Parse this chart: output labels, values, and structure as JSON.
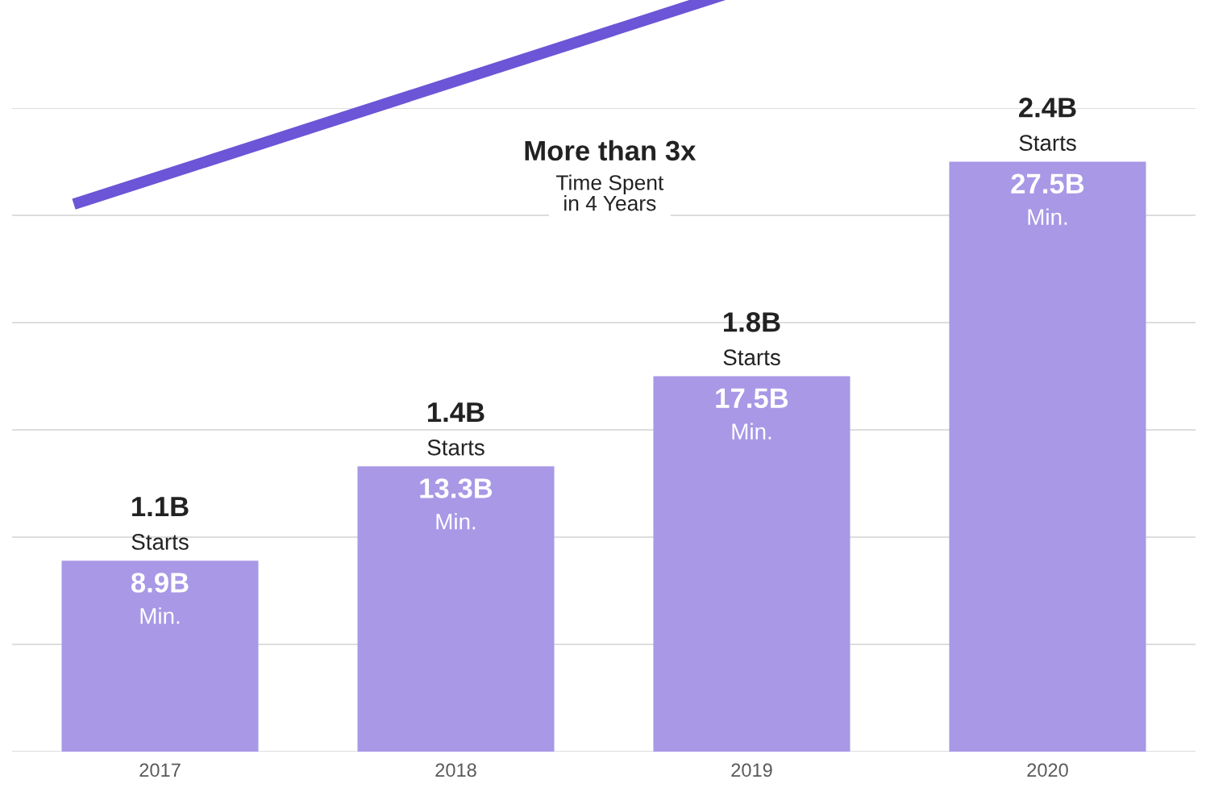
{
  "chart_data": {
    "type": "bar",
    "categories": [
      "2017",
      "2018",
      "2019",
      "2020"
    ],
    "values": [
      8.9,
      13.3,
      17.5,
      27.5
    ],
    "color": "#a898e6",
    "value_labels": [
      "8.9B\nMin.",
      "13.3B\nMin.",
      "17.5B\nMin.",
      "27.5B\nMin."
    ],
    "ylim": [
      0,
      30
    ],
    "yticks": [
      {
        "value": 0,
        "label": null
      },
      {
        "value": 5,
        "label": null
      },
      {
        "value": 10,
        "label": null
      },
      {
        "value": 15,
        "label": null
      },
      {
        "value": 20,
        "label": null
      },
      {
        "value": 25,
        "label": null
      },
      {
        "value": 30,
        "label": null
      }
    ],
    "tick_labels": "x",
    "grid": "y",
    "relative": false,
    "annotations": [
      {
        "text": "1.1B\nStarts",
        "x": "2017",
        "y": 8.9
      },
      {
        "text": "1.4B\nStarts",
        "x": "2018",
        "y": 13.3
      },
      {
        "text": "1.8B\nStarts",
        "x": "2019",
        "y": 17.5
      },
      {
        "text": "2.4B\nStarts",
        "x": "2020",
        "y": 27.5
      },
      "More than 3x\nTime Spent\nin 4 Years"
    ]
  }
}
